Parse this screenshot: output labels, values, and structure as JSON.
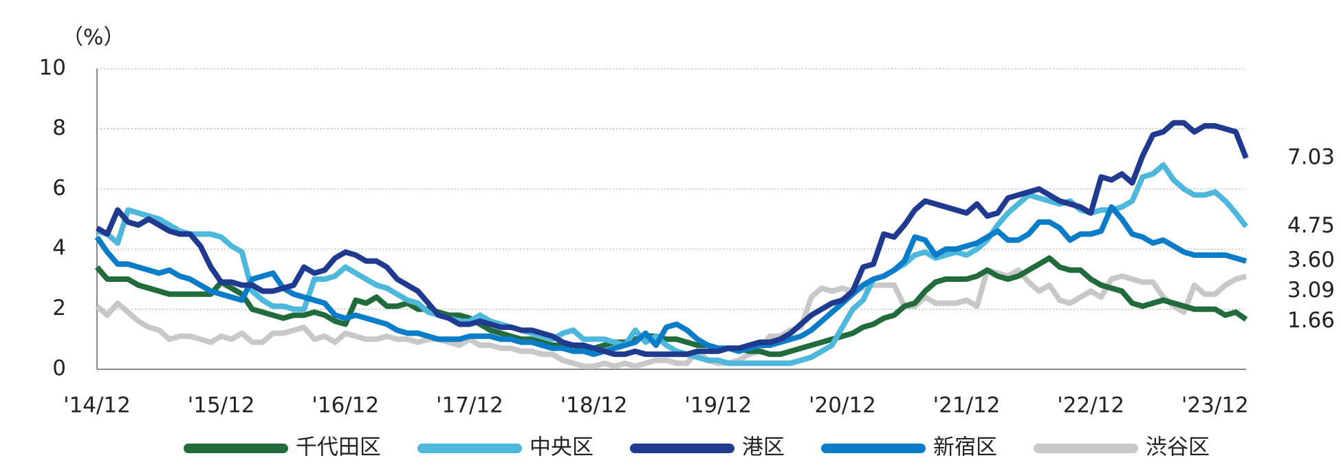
{
  "chart_data": {
    "type": "line",
    "y_axis_label": "（%）",
    "categories": [
      "'14/12",
      null,
      null,
      null,
      null,
      null,
      null,
      null,
      null,
      null,
      null,
      null,
      "'15/12",
      null,
      null,
      null,
      null,
      null,
      null,
      null,
      null,
      null,
      null,
      null,
      "'16/12",
      null,
      null,
      null,
      null,
      null,
      null,
      null,
      null,
      null,
      null,
      null,
      "'17/12",
      null,
      null,
      null,
      null,
      null,
      null,
      null,
      null,
      null,
      null,
      null,
      "'18/12",
      null,
      null,
      null,
      null,
      null,
      null,
      null,
      null,
      null,
      null,
      null,
      "'19/12",
      null,
      null,
      null,
      null,
      null,
      null,
      null,
      null,
      null,
      null,
      null,
      "'20/12",
      null,
      null,
      null,
      null,
      null,
      null,
      null,
      null,
      null,
      null,
      null,
      "'21/12",
      null,
      null,
      null,
      null,
      null,
      null,
      null,
      null,
      null,
      null,
      null,
      "'22/12",
      null,
      null,
      null,
      null,
      null,
      null,
      null,
      null,
      null,
      null,
      null,
      "'23/12",
      null,
      null,
      null
    ],
    "ylim": [
      0,
      10
    ],
    "yticks": [
      0,
      2,
      4,
      6,
      8,
      10
    ],
    "grid": true,
    "legend": "bottom",
    "series": [
      {
        "name": "千代田区",
        "color": "#226b3c",
        "end_label": "1.66",
        "values": [
          3.4,
          3.0,
          3.0,
          3.0,
          2.8,
          2.7,
          2.6,
          2.5,
          2.5,
          2.5,
          2.5,
          2.5,
          2.9,
          2.7,
          2.5,
          2.0,
          1.9,
          1.8,
          1.7,
          1.8,
          1.8,
          1.9,
          1.8,
          1.6,
          1.5,
          2.3,
          2.2,
          2.4,
          2.1,
          2.1,
          2.2,
          2.0,
          2.0,
          1.9,
          1.8,
          1.8,
          1.7,
          1.5,
          1.3,
          1.2,
          1.1,
          1.0,
          1.0,
          0.9,
          0.8,
          0.8,
          0.8,
          0.7,
          0.7,
          0.8,
          0.9,
          0.9,
          1.0,
          1.1,
          1.1,
          1.0,
          1.0,
          0.9,
          0.8,
          0.8,
          0.7,
          0.7,
          0.7,
          0.6,
          0.6,
          0.5,
          0.5,
          0.6,
          0.7,
          0.8,
          0.9,
          1.0,
          1.1,
          1.2,
          1.4,
          1.5,
          1.7,
          1.8,
          2.1,
          2.2,
          2.6,
          2.9,
          3.0,
          3.0,
          3.0,
          3.1,
          3.3,
          3.1,
          3.0,
          3.1,
          3.3,
          3.5,
          3.7,
          3.4,
          3.3,
          3.3,
          3.0,
          2.8,
          2.7,
          2.6,
          2.2,
          2.1,
          2.2,
          2.3,
          2.2,
          2.1,
          2.0,
          2.0,
          2.0,
          1.8,
          1.9,
          1.66
        ]
      },
      {
        "name": "中央区",
        "color": "#4db8dc",
        "end_label": "4.75",
        "values": [
          4.6,
          4.5,
          4.2,
          5.3,
          5.2,
          5.1,
          5.0,
          4.8,
          4.6,
          4.5,
          4.5,
          4.5,
          4.4,
          4.1,
          3.9,
          2.6,
          2.3,
          2.1,
          2.1,
          2.0,
          2.0,
          3.0,
          3.0,
          3.1,
          3.4,
          3.2,
          3.0,
          2.8,
          2.7,
          2.5,
          2.3,
          2.2,
          1.9,
          1.8,
          1.7,
          1.6,
          1.6,
          1.8,
          1.6,
          1.5,
          1.4,
          1.3,
          1.2,
          1.1,
          1.0,
          1.2,
          1.3,
          1.0,
          1.0,
          1.0,
          0.9,
          0.8,
          1.3,
          0.9,
          1.1,
          0.8,
          0.6,
          0.5,
          0.4,
          0.3,
          0.3,
          0.2,
          0.2,
          0.2,
          0.2,
          0.2,
          0.2,
          0.2,
          0.3,
          0.4,
          0.6,
          0.8,
          1.4,
          2.0,
          2.3,
          3.0,
          3.1,
          3.3,
          3.5,
          3.8,
          3.9,
          3.7,
          3.8,
          3.9,
          3.8,
          4.0,
          4.3,
          4.8,
          5.2,
          5.5,
          5.8,
          5.7,
          5.6,
          5.5,
          5.6,
          5.3,
          5.2,
          5.3,
          5.3,
          5.4,
          5.6,
          6.4,
          6.5,
          6.8,
          6.3,
          6.0,
          5.8,
          5.8,
          5.9,
          5.6,
          5.2,
          4.75
        ]
      },
      {
        "name": "港区",
        "color": "#1f3a8f",
        "end_label": "7.03",
        "values": [
          4.7,
          4.5,
          5.3,
          4.9,
          4.8,
          5.0,
          4.8,
          4.6,
          4.5,
          4.5,
          4.1,
          3.4,
          2.9,
          2.9,
          2.8,
          2.8,
          2.6,
          2.6,
          2.7,
          2.8,
          3.4,
          3.2,
          3.3,
          3.7,
          3.9,
          3.8,
          3.6,
          3.6,
          3.4,
          3.0,
          2.8,
          2.6,
          2.2,
          1.8,
          1.7,
          1.5,
          1.5,
          1.6,
          1.5,
          1.4,
          1.4,
          1.3,
          1.3,
          1.2,
          1.1,
          0.9,
          0.8,
          0.8,
          0.7,
          0.6,
          0.5,
          0.5,
          0.6,
          0.5,
          0.5,
          0.5,
          0.5,
          0.5,
          0.6,
          0.6,
          0.6,
          0.7,
          0.7,
          0.8,
          0.9,
          0.9,
          1.0,
          1.2,
          1.5,
          1.8,
          2.0,
          2.2,
          2.3,
          2.6,
          3.4,
          3.5,
          4.5,
          4.4,
          4.8,
          5.3,
          5.6,
          5.5,
          5.4,
          5.3,
          5.2,
          5.5,
          5.1,
          5.2,
          5.7,
          5.8,
          5.9,
          6.0,
          5.8,
          5.6,
          5.5,
          5.4,
          5.2,
          6.4,
          6.3,
          6.5,
          6.2,
          7.1,
          7.8,
          7.9,
          8.2,
          8.2,
          7.9,
          8.1,
          8.1,
          8.0,
          7.9,
          7.03
        ]
      },
      {
        "name": "新宿区",
        "color": "#0b7cc7",
        "end_label": "3.60",
        "values": [
          4.4,
          3.9,
          3.5,
          3.5,
          3.4,
          3.3,
          3.2,
          3.3,
          3.1,
          3.0,
          2.8,
          2.6,
          2.5,
          2.4,
          2.3,
          3.0,
          3.1,
          3.2,
          2.7,
          2.5,
          2.4,
          2.3,
          2.2,
          1.8,
          1.7,
          1.8,
          1.7,
          1.6,
          1.5,
          1.3,
          1.2,
          1.2,
          1.1,
          1.0,
          1.0,
          1.0,
          1.1,
          1.1,
          1.1,
          1.0,
          1.0,
          0.9,
          0.9,
          0.8,
          0.7,
          0.7,
          0.6,
          0.6,
          0.5,
          0.6,
          0.7,
          0.8,
          0.9,
          1.2,
          0.8,
          1.4,
          1.5,
          1.3,
          1.0,
          0.8,
          0.7,
          0.7,
          0.6,
          0.7,
          0.8,
          0.8,
          0.9,
          1.0,
          1.1,
          1.3,
          1.6,
          1.9,
          2.2,
          2.5,
          2.8,
          3.0,
          3.1,
          3.3,
          3.6,
          4.4,
          4.3,
          3.8,
          4.0,
          4.0,
          4.1,
          4.2,
          4.4,
          4.6,
          4.3,
          4.3,
          4.5,
          4.9,
          4.9,
          4.7,
          4.3,
          4.5,
          4.5,
          4.6,
          5.4,
          5.0,
          4.5,
          4.4,
          4.2,
          4.3,
          4.1,
          3.9,
          3.8,
          3.8,
          3.8,
          3.8,
          3.7,
          3.6
        ]
      },
      {
        "name": "渋谷区",
        "color": "#c8c8c8",
        "end_label": "3.09",
        "values": [
          2.1,
          1.8,
          2.2,
          1.9,
          1.6,
          1.4,
          1.3,
          1.0,
          1.1,
          1.1,
          1.0,
          0.9,
          1.1,
          1.0,
          1.2,
          0.9,
          0.9,
          1.2,
          1.2,
          1.3,
          1.4,
          1.0,
          1.1,
          0.9,
          1.2,
          1.1,
          1.0,
          1.0,
          1.1,
          1.0,
          1.0,
          0.9,
          1.0,
          1.0,
          0.9,
          0.8,
          1.0,
          0.8,
          0.8,
          0.7,
          0.7,
          0.6,
          0.6,
          0.5,
          0.5,
          0.3,
          0.2,
          0.1,
          0.1,
          0.2,
          0.1,
          0.2,
          0.1,
          0.2,
          0.3,
          0.3,
          0.2,
          0.2,
          0.6,
          0.3,
          0.2,
          0.2,
          0.3,
          0.5,
          0.6,
          1.1,
          1.1,
          1.3,
          1.4,
          2.4,
          2.7,
          2.6,
          2.7,
          2.6,
          2.7,
          2.8,
          2.8,
          2.8,
          2.1,
          2.1,
          2.4,
          2.2,
          2.2,
          2.2,
          2.3,
          2.1,
          3.3,
          3.2,
          3.1,
          3.3,
          2.9,
          2.6,
          2.8,
          2.3,
          2.2,
          2.4,
          2.6,
          2.4,
          3.0,
          3.1,
          3.0,
          2.9,
          2.9,
          2.4,
          2.1,
          1.9,
          2.8,
          2.5,
          2.5,
          2.8,
          3.0,
          3.09
        ]
      }
    ]
  }
}
